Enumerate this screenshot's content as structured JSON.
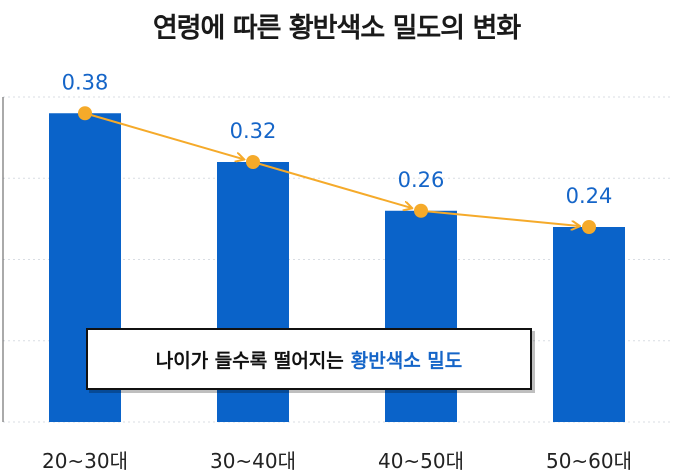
{
  "title": "연령에 따른 황반색소 밀도의 변화",
  "colors": {
    "bar": "#0a63c9",
    "trend": "#f5aa2a",
    "label": "#1565c8",
    "grid": "#d9dde3"
  },
  "chart_data": {
    "type": "bar",
    "categories": [
      "20~30대",
      "30~40대",
      "40~50대",
      "50~60대"
    ],
    "values": [
      0.38,
      0.32,
      0.26,
      0.24
    ],
    "data_labels": [
      "0.38",
      "0.32",
      "0.26",
      "0.24"
    ],
    "title": "연령에 따른 황반색소 밀도의 변화",
    "xlabel": "",
    "ylabel": "",
    "ylim": [
      0,
      0.4
    ],
    "grid": true,
    "trend_line": true
  },
  "callout": {
    "text": "나이가 들수록 떨어지는",
    "highlight": "황반색소 밀도"
  }
}
